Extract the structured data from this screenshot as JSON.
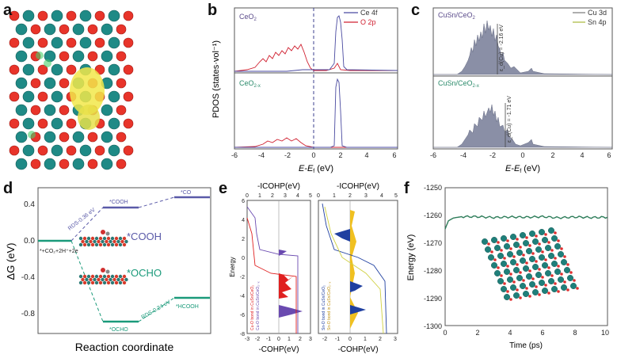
{
  "figure": {
    "panel_labels": [
      "a",
      "b",
      "c",
      "d",
      "e",
      "f"
    ]
  },
  "panel_b": {
    "ylabel": "PDOS (states·vol⁻¹)",
    "xlabel": "E-E",
    "xlabel_sub": "f",
    "xlabel_unit": "(eV)",
    "top_label": "CeO",
    "top_label_sub": "2",
    "bottom_label": "CeO",
    "bottom_label_sub": "2-x",
    "legend": [
      "Ce 4f",
      "O 2p"
    ],
    "xticks": [
      "-6",
      "-4",
      "-2",
      "0",
      "2",
      "4",
      "6"
    ]
  },
  "panel_c": {
    "xlabel": "E-E",
    "xlabel_sub": "f",
    "xlabel_unit": "(eV)",
    "top_label": "CuSn/CeO",
    "top_label_sub": "2",
    "bottom_label": "CuSn/CeO",
    "bottom_label_sub": "2-x",
    "legend": [
      "Cu 3d",
      "Sn 4p"
    ],
    "dband_top": "ε_d(Cu) = -2.16 eV",
    "dband_bottom": "ε_d(Cu) = -1.71 eV",
    "xticks": [
      "-6",
      "-4",
      "-2",
      "0",
      "2",
      "4",
      "6"
    ]
  },
  "panel_d": {
    "ylabel": "ΔG (eV)",
    "xlabel": "Reaction coordinate",
    "yticks": [
      "0.4",
      "0.0",
      "-0.4",
      "-0.8"
    ],
    "states": [
      "*+CO₂+2H⁺+2e",
      "*COOH",
      "*CO",
      "*OCHO",
      "*HCOOH"
    ],
    "big_labels": [
      "*COOH",
      "*OCHO"
    ],
    "rds": [
      "RDS-0.36 eV",
      "RDS-0.24 eV"
    ]
  },
  "panel_e": {
    "top_xlabel": "-ICOHP(eV)",
    "bottom_xlabel": "-COHP(eV)",
    "ylabel": "Energy",
    "left_top_ticks": [
      "0",
      "1",
      "2",
      "3",
      "4",
      "5"
    ],
    "right_top_ticks": [
      "0",
      "1",
      "2",
      "3",
      "4",
      "5"
    ],
    "left_bottom_ticks": [
      "-3",
      "-2",
      "-1",
      "0",
      "1",
      "2",
      "3"
    ],
    "right_bottom_ticks": [
      "-2",
      "-1",
      "0",
      "1",
      "2",
      "3"
    ],
    "yticks": [
      "6",
      "4",
      "2",
      "0",
      "-2",
      "-4",
      "-6",
      "-8"
    ],
    "left_legend": [
      "Cu-O bond in CuSn/CeO₂",
      "Cu-O bond in CuSn/CeO₂₋ₓ"
    ],
    "right_legend": [
      "Sn-O bond in CuSn/CeO₂",
      "Sn-O bond in CuSn/CeO₂₋ₓ"
    ]
  },
  "panel_f": {
    "ylabel": "Energy (eV)",
    "xlabel": "Time (ps)",
    "yticks": [
      "-1250",
      "-1260",
      "-1270",
      "-1280",
      "-1290",
      "-1300"
    ],
    "xticks": [
      "0",
      "2",
      "4",
      "6",
      "8",
      "10"
    ]
  },
  "chart_data": [
    {
      "type": "line",
      "xlim": [
        0,
        10
      ],
      "ylim": [
        -1300,
        -1250
      ],
      "x": [
        0,
        0.2,
        0.5,
        1,
        2,
        3,
        4,
        5,
        6,
        7,
        8,
        9,
        10
      ],
      "series": [
        {
          "values": [
            -1265,
            -1262,
            -1261,
            -1260.5,
            -1260.5,
            -1260.8,
            -1260.6,
            -1260.7,
            -1260.5,
            -1260.9,
            -1260.6,
            -1260.8,
            -1260.7
          ]
        }
      ],
      "colors": {
        "line": "#2e7d5a"
      }
    }
  ]
}
